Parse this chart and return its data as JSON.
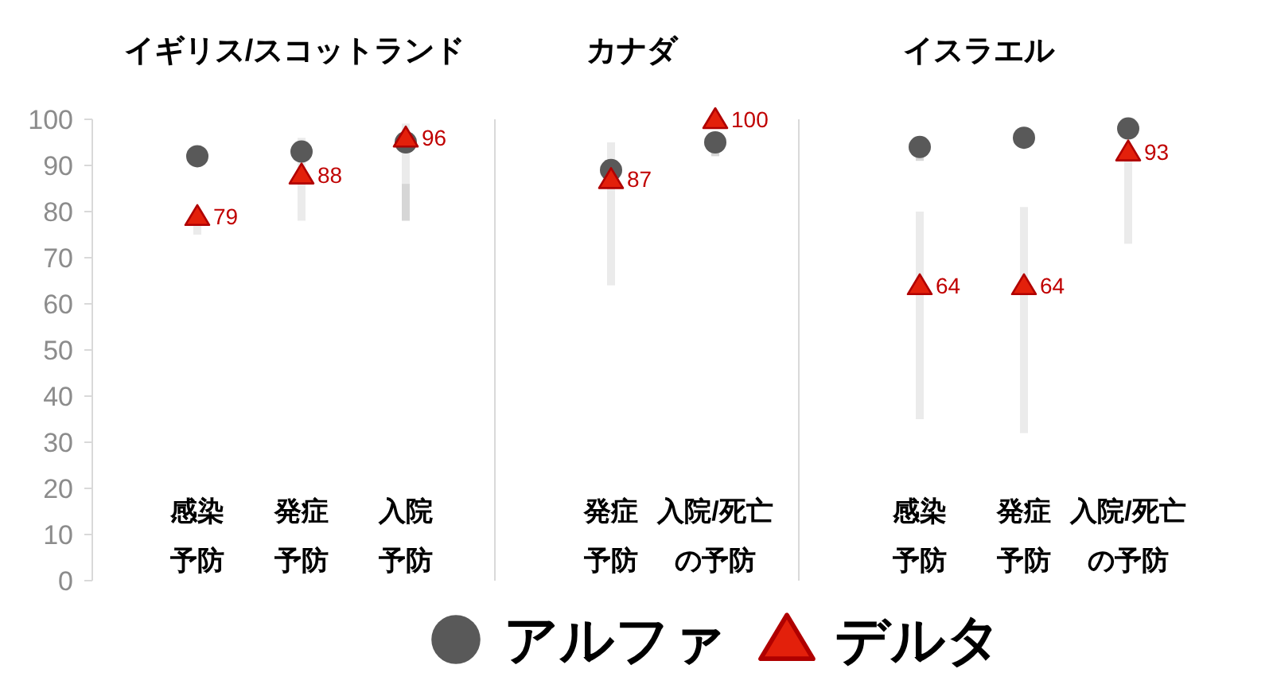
{
  "chart_data": [
    {
      "type": "scatter",
      "title": "イギリス/スコットランド",
      "categories": [
        "感染予防",
        "発症予防",
        "入院予防"
      ],
      "ylim": [
        0,
        100
      ],
      "yticks": [
        0,
        10,
        20,
        30,
        40,
        50,
        60,
        70,
        80,
        90,
        100
      ],
      "legend": "bottom",
      "series": [
        {
          "name": "アルファ",
          "color": "#595959",
          "marker": "circle",
          "values": [
            92,
            93,
            95
          ],
          "errors": [
            null,
            null,
            [
              78,
              99
            ]
          ]
        },
        {
          "name": "デルタ",
          "color": "#e3200b",
          "marker": "triangle",
          "values": [
            79,
            88,
            96
          ],
          "errors": [
            [
              75,
              79
            ],
            [
              78,
              96
            ],
            [
              86,
              99
            ]
          ],
          "value_labels": [
            "79",
            "88",
            "96"
          ]
        }
      ]
    },
    {
      "type": "scatter",
      "title": "カナダ",
      "categories": [
        "発症予防",
        "入院/死亡の予防"
      ],
      "ylim": [
        0,
        100
      ],
      "tick_labels": "x",
      "series": [
        {
          "color": "#595959",
          "marker": "circle",
          "values": [
            89,
            95
          ],
          "errors": [
            null,
            [
              92,
              95
            ]
          ]
        },
        {
          "color": "#e3200b",
          "marker": "triangle",
          "values": [
            87,
            100
          ],
          "errors": [
            [
              64,
              95
            ],
            null
          ],
          "value_labels": [
            "87",
            "100"
          ]
        }
      ]
    },
    {
      "type": "scatter",
      "title": "イスラエル",
      "categories": [
        "感染予防",
        "発症予防",
        "入院/死亡の予防"
      ],
      "ylim": [
        0,
        100
      ],
      "tick_labels": "x",
      "series": [
        {
          "color": "#595959",
          "marker": "circle",
          "values": [
            94,
            96,
            98
          ],
          "errors": [
            [
              91,
              94
            ],
            null,
            null
          ]
        },
        {
          "color": "#e3200b",
          "marker": "triangle",
          "values": [
            64,
            64,
            93
          ],
          "errors": [
            [
              35,
              80
            ],
            [
              32,
              81
            ],
            [
              73,
              93
            ]
          ],
          "value_labels": [
            "64",
            "64",
            "93"
          ]
        }
      ]
    }
  ]
}
